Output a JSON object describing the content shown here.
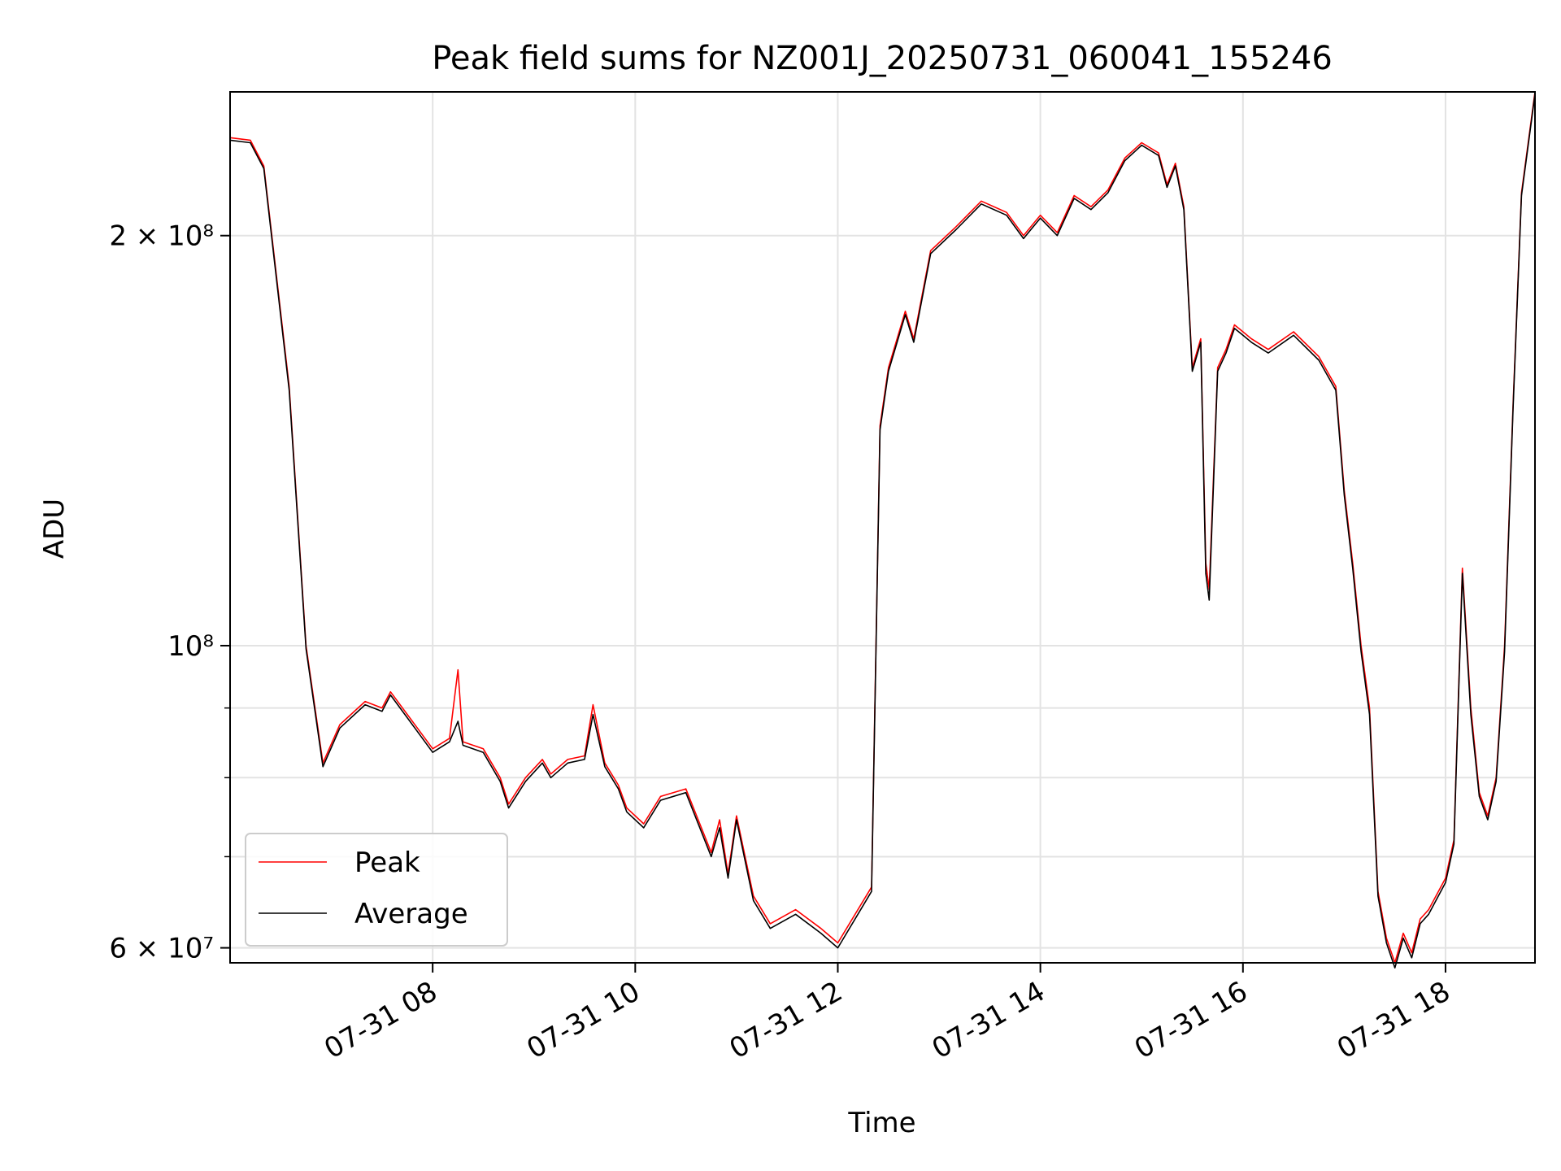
{
  "chart_data": {
    "type": "line",
    "title": "Peak field sums for NZ001J_20250731_060041_155246",
    "xlabel": "Time",
    "ylabel": "ADU",
    "y_scale": "log",
    "ylim": [
      58500000,
      255000000
    ],
    "x_range": [
      "07-31 06:00",
      "07-31 18:53"
    ],
    "x_ticks": [
      "07-31 08",
      "07-31 10",
      "07-31 12",
      "07-31 14",
      "07-31 16",
      "07-31 18"
    ],
    "y_ticks": [
      "2 × 10⁸",
      "10⁸",
      "6 × 10⁷"
    ],
    "grid": true,
    "legend_position": "lower-left",
    "colors": {
      "peak": "#ff0000",
      "average": "#000000",
      "grid": "#e3e3e3"
    },
    "series": [
      {
        "name": "Peak",
        "x": [
          "07-31 06:00",
          "07-31 06:12",
          "07-31 06:20",
          "07-31 06:35",
          "07-31 06:45",
          "07-31 06:55",
          "07-31 07:05",
          "07-31 07:20",
          "07-31 07:30",
          "07-31 07:35",
          "07-31 07:48",
          "07-31 08:00",
          "07-31 08:10",
          "07-31 08:15",
          "07-31 08:18",
          "07-31 08:30",
          "07-31 08:40",
          "07-31 08:45",
          "07-31 08:55",
          "07-31 09:05",
          "07-31 09:10",
          "07-31 09:20",
          "07-31 09:30",
          "07-31 09:35",
          "07-31 09:42",
          "07-31 09:50",
          "07-31 09:55",
          "07-31 10:05",
          "07-31 10:15",
          "07-31 10:30",
          "07-31 10:45",
          "07-31 10:50",
          "07-31 10:55",
          "07-31 11:00",
          "07-31 11:10",
          "07-31 11:20",
          "07-31 11:35",
          "07-31 11:50",
          "07-31 12:00",
          "07-31 12:20",
          "07-31 12:25",
          "07-31 12:30",
          "07-31 12:40",
          "07-31 12:45",
          "07-31 12:55",
          "07-31 13:10",
          "07-31 13:25",
          "07-31 13:40",
          "07-31 13:50",
          "07-31 14:00",
          "07-31 14:10",
          "07-31 14:20",
          "07-31 14:30",
          "07-31 14:40",
          "07-31 14:50",
          "07-31 15:00",
          "07-31 15:10",
          "07-31 15:15",
          "07-31 15:20",
          "07-31 15:25",
          "07-31 15:30",
          "07-31 15:35",
          "07-31 15:38",
          "07-31 15:40",
          "07-31 15:45",
          "07-31 15:50",
          "07-31 15:55",
          "07-31 16:00",
          "07-31 16:05",
          "07-31 16:15",
          "07-31 16:30",
          "07-31 16:45",
          "07-31 16:55",
          "07-31 17:00",
          "07-31 17:05",
          "07-31 17:10",
          "07-31 17:15",
          "07-31 17:20",
          "07-31 17:25",
          "07-31 17:30",
          "07-31 17:35",
          "07-31 17:40",
          "07-31 17:45",
          "07-31 17:50",
          "07-31 18:00",
          "07-31 18:05",
          "07-31 18:10",
          "07-31 18:15",
          "07-31 18:20",
          "07-31 18:25",
          "07-31 18:30",
          "07-31 18:35",
          "07-31 18:40",
          "07-31 18:45",
          "07-31 18:53"
        ],
        "values": [
          236000000,
          235000000,
          225000000,
          155000000,
          100000000,
          82000000,
          87500000,
          91000000,
          90000000,
          92500000,
          88000000,
          84000000,
          85500000,
          96000000,
          85000000,
          84000000,
          80000000,
          76500000,
          80000000,
          82500000,
          80500000,
          82500000,
          83000000,
          90500000,
          82000000,
          79000000,
          76000000,
          74000000,
          77500000,
          78500000,
          70500000,
          74500000,
          68000000,
          75000000,
          65500000,
          62500000,
          64000000,
          62000000,
          60500000,
          66500000,
          145000000,
          160000000,
          176000000,
          168000000,
          195000000,
          203000000,
          212000000,
          208000000,
          200000000,
          207000000,
          201000000,
          214000000,
          210000000,
          216000000,
          228000000,
          234000000,
          230000000,
          218000000,
          226000000,
          210000000,
          160000000,
          168000000,
          115000000,
          110000000,
          160000000,
          165000000,
          172000000,
          170000000,
          168000000,
          165000000,
          170000000,
          163000000,
          155000000,
          130000000,
          115000000,
          100000000,
          90000000,
          66000000,
          61000000,
          58500000,
          61500000,
          59500000,
          63000000,
          64000000,
          67500000,
          72000000,
          114000000,
          90000000,
          78000000,
          75000000,
          80000000,
          100000000,
          150000000,
          215000000,
          255000000
        ]
      },
      {
        "name": "Average",
        "x": [
          "07-31 06:00",
          "07-31 06:12",
          "07-31 06:20",
          "07-31 06:35",
          "07-31 06:45",
          "07-31 06:55",
          "07-31 07:05",
          "07-31 07:20",
          "07-31 07:30",
          "07-31 07:35",
          "07-31 07:48",
          "07-31 08:00",
          "07-31 08:10",
          "07-31 08:15",
          "07-31 08:18",
          "07-31 08:30",
          "07-31 08:40",
          "07-31 08:45",
          "07-31 08:55",
          "07-31 09:05",
          "07-31 09:10",
          "07-31 09:20",
          "07-31 09:30",
          "07-31 09:35",
          "07-31 09:42",
          "07-31 09:50",
          "07-31 09:55",
          "07-31 10:05",
          "07-31 10:15",
          "07-31 10:30",
          "07-31 10:45",
          "07-31 10:50",
          "07-31 10:55",
          "07-31 11:00",
          "07-31 11:10",
          "07-31 11:20",
          "07-31 11:35",
          "07-31 11:50",
          "07-31 12:00",
          "07-31 12:20",
          "07-31 12:25",
          "07-31 12:30",
          "07-31 12:40",
          "07-31 12:45",
          "07-31 12:55",
          "07-31 13:10",
          "07-31 13:25",
          "07-31 13:40",
          "07-31 13:50",
          "07-31 14:00",
          "07-31 14:10",
          "07-31 14:20",
          "07-31 14:30",
          "07-31 14:40",
          "07-31 14:50",
          "07-31 15:00",
          "07-31 15:10",
          "07-31 15:15",
          "07-31 15:20",
          "07-31 15:25",
          "07-31 15:30",
          "07-31 15:35",
          "07-31 15:38",
          "07-31 15:40",
          "07-31 15:45",
          "07-31 15:50",
          "07-31 15:55",
          "07-31 16:00",
          "07-31 16:05",
          "07-31 16:15",
          "07-31 16:30",
          "07-31 16:45",
          "07-31 16:55",
          "07-31 17:00",
          "07-31 17:05",
          "07-31 17:10",
          "07-31 17:15",
          "07-31 17:20",
          "07-31 17:25",
          "07-31 17:30",
          "07-31 17:35",
          "07-31 17:40",
          "07-31 17:45",
          "07-31 17:50",
          "07-31 18:00",
          "07-31 18:05",
          "07-31 18:10",
          "07-31 18:15",
          "07-31 18:20",
          "07-31 18:25",
          "07-31 18:30",
          "07-31 18:35",
          "07-31 18:40",
          "07-31 18:45",
          "07-31 18:53"
        ],
        "values": [
          235000000,
          234000000,
          224000000,
          154000000,
          99500000,
          81500000,
          87000000,
          90500000,
          89500000,
          92000000,
          87500000,
          83500000,
          85000000,
          88000000,
          84500000,
          83500000,
          79500000,
          76000000,
          79500000,
          82000000,
          80000000,
          82000000,
          82500000,
          89000000,
          81500000,
          78500000,
          75500000,
          73500000,
          77000000,
          78000000,
          70000000,
          73500000,
          67500000,
          74500000,
          65000000,
          62000000,
          63500000,
          61500000,
          60000000,
          66000000,
          144000000,
          159000000,
          175000000,
          167000000,
          194000000,
          202000000,
          211000000,
          207000000,
          199000000,
          206000000,
          200000000,
          213000000,
          209000000,
          215000000,
          227000000,
          233000000,
          229000000,
          217000000,
          225000000,
          209000000,
          159000000,
          167000000,
          113000000,
          108000000,
          159000000,
          164000000,
          171000000,
          169000000,
          167000000,
          164000000,
          169000000,
          162000000,
          154000000,
          129000000,
          114000000,
          99000000,
          89000000,
          65500000,
          60500000,
          58000000,
          61000000,
          59000000,
          62500000,
          63500000,
          67000000,
          71500000,
          113000000,
          89000000,
          77500000,
          74500000,
          79500000,
          99000000,
          149000000,
          214000000,
          254000000
        ]
      }
    ]
  }
}
